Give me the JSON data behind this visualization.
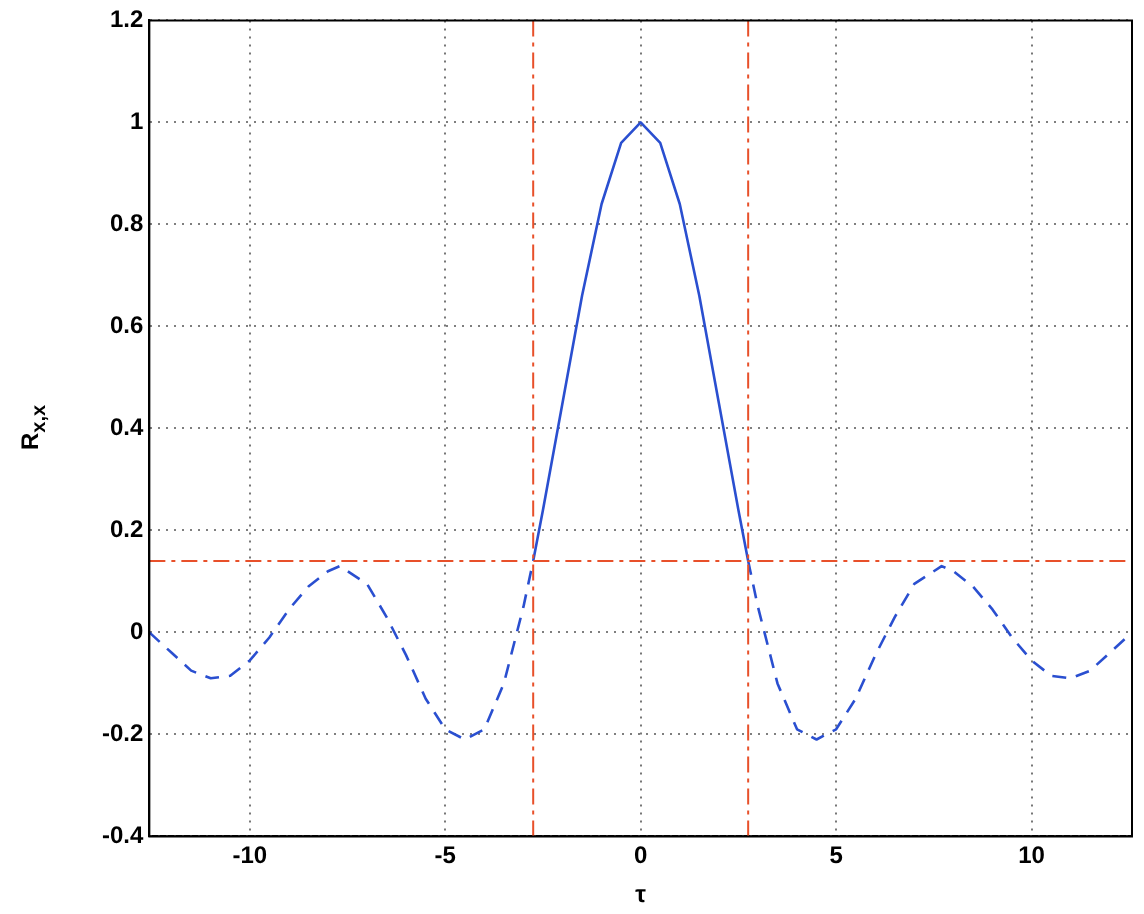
{
  "chart_data": {
    "type": "line",
    "xlabel": "τ",
    "ylabel": "R$_{x,x}$",
    "xlim": [
      -12.57,
      12.57
    ],
    "ylim": [
      -0.4,
      1.2
    ],
    "xticks": [
      -10,
      -5,
      0,
      5,
      10
    ],
    "yticks": [
      -0.4,
      -0.2,
      0,
      0.2,
      0.4,
      0.6,
      0.8,
      1,
      1.2
    ],
    "grid": true,
    "marker": "none",
    "series": [
      {
        "color": "#2a4fd0",
        "line_style": "solid",
        "x": [
          -2.75,
          -2.5,
          -2,
          -1.5,
          -1,
          -0.5,
          0,
          0.5,
          1,
          1.5,
          2,
          2.5,
          2.75
        ],
        "values": [
          0.14,
          0.24,
          0.45,
          0.66,
          0.84,
          0.96,
          1.0,
          0.96,
          0.84,
          0.66,
          0.45,
          0.24,
          0.14
        ]
      },
      {
        "color": "#2a4fd0",
        "line_style": "dashed",
        "x": [
          -12.57,
          -12,
          -11.5,
          -11,
          -10.5,
          -10,
          -9.5,
          -9,
          -8.5,
          -8,
          -7.7,
          -7,
          -6.5,
          -6,
          -5.5,
          -5,
          -4.5,
          -4,
          -3.5,
          -3,
          -2.75,
          0,
          2.75,
          3,
          3.5,
          4,
          4.5,
          5,
          5.5,
          6,
          6.5,
          7,
          7.7,
          8,
          8.5,
          9,
          9.5,
          10,
          10.5,
          11,
          11.5,
          12,
          12.57
        ],
        "values": [
          0.0,
          -0.04,
          -0.075,
          -0.09,
          -0.085,
          -0.055,
          -0.01,
          0.045,
          0.09,
          0.12,
          0.13,
          0.095,
          0.03,
          -0.045,
          -0.13,
          -0.19,
          -0.21,
          -0.19,
          -0.1,
          0.05,
          0.14,
          null,
          0.14,
          0.05,
          -0.1,
          -0.19,
          -0.21,
          -0.19,
          -0.13,
          -0.045,
          0.03,
          0.095,
          0.13,
          0.12,
          0.09,
          0.045,
          -0.01,
          -0.055,
          -0.085,
          -0.09,
          -0.075,
          -0.04,
          0.0
        ]
      }
    ],
    "ref_lines": [
      {
        "axis": "x",
        "value": -2.75,
        "color": "#e8502a",
        "line_style": "dashed"
      },
      {
        "axis": "x",
        "value": 2.75,
        "color": "#e8502a",
        "line_style": "dashed"
      },
      {
        "axis": "y",
        "value": 0.14,
        "color": "#e8502a",
        "line_style": "dashed"
      }
    ]
  }
}
